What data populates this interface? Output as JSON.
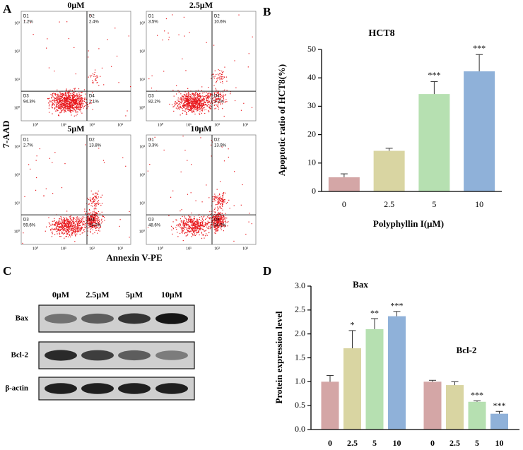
{
  "panel_labels": [
    "A",
    "B",
    "C",
    "D"
  ],
  "flow": {
    "y_label": "7-AAD",
    "x_label": "Annexin V-PE",
    "axis_ticks": [
      "10⁰",
      "10¹",
      "10²",
      "10³"
    ],
    "quadrant_names": [
      "D1",
      "D2",
      "D3",
      "D4"
    ],
    "panels": [
      {
        "title": "0μM",
        "quadrants": [
          "1.2%",
          "2.4%",
          "94.3%",
          "2.1%"
        ]
      },
      {
        "title": "2.5μM",
        "quadrants": [
          "3.5%",
          "10.6%",
          "82.2%",
          "3.7%"
        ]
      },
      {
        "title": "5μM",
        "quadrants": [
          "2.7%",
          "13.8%",
          "59.6%",
          "24.0%"
        ]
      },
      {
        "title": "10μM",
        "quadrants": [
          "3.3%",
          "13.9%",
          "48.6%",
          "34.2%"
        ]
      }
    ]
  },
  "blot": {
    "columns": [
      "0μM",
      "2.5μM",
      "5μM",
      "10μM"
    ],
    "rows": [
      "Bax",
      "Bcl-2",
      "β-actin"
    ]
  },
  "chart_data": [
    {
      "type": "bar",
      "title": "HCT8",
      "x_label": "Polyphyllin I(μM)",
      "y_label": "Apoptotic ratio of HCT8(%)",
      "categories": [
        "0",
        "2.5",
        "5",
        "10"
      ],
      "values": [
        5.0,
        14.3,
        34.3,
        42.3
      ],
      "errors": [
        1.2,
        0.9,
        4.4,
        5.9
      ],
      "colors": [
        "#d4a6a6",
        "#d9d5a2",
        "#b6e0b1",
        "#8fb1d9"
      ],
      "annotations": [
        {
          "index": 2,
          "text": "***"
        },
        {
          "index": 3,
          "text": "***"
        }
      ],
      "ylim": [
        0,
        50
      ],
      "yticks": [
        0,
        10,
        20,
        30,
        40,
        50
      ]
    },
    {
      "type": "grouped_bar",
      "y_label": "Protein expression level",
      "categories": [
        "0",
        "2.5",
        "5",
        "10"
      ],
      "colors": [
        "#d4a6a6",
        "#d9d5a2",
        "#b6e0b1",
        "#8fb1d9"
      ],
      "groups": [
        {
          "name": "Bax",
          "values": [
            1.0,
            1.7,
            2.1,
            2.37
          ],
          "errors": [
            0.13,
            0.37,
            0.22,
            0.1
          ],
          "annotations": [
            {
              "index": 1,
              "text": "*"
            },
            {
              "index": 2,
              "text": "**"
            },
            {
              "index": 3,
              "text": "***"
            }
          ]
        },
        {
          "name": "Bcl-2",
          "values": [
            1.0,
            0.93,
            0.58,
            0.33
          ],
          "errors": [
            0.03,
            0.07,
            0.02,
            0.05
          ],
          "annotations": [
            {
              "index": 2,
              "text": "***"
            },
            {
              "index": 3,
              "text": "***"
            }
          ]
        }
      ],
      "ylim": [
        0,
        3.0
      ],
      "yticks": [
        {
          "value": 0,
          "label": "0.0"
        },
        {
          "value": 0.5,
          "label": "0.5"
        },
        {
          "value": 1.0,
          "label": "1.0"
        },
        {
          "value": 1.5,
          "label": "1.5"
        },
        {
          "value": 2.0,
          "label": "2.0"
        },
        {
          "value": 2.5,
          "label": "2.5"
        },
        {
          "value": 3.0,
          "label": "3.0"
        }
      ]
    }
  ]
}
